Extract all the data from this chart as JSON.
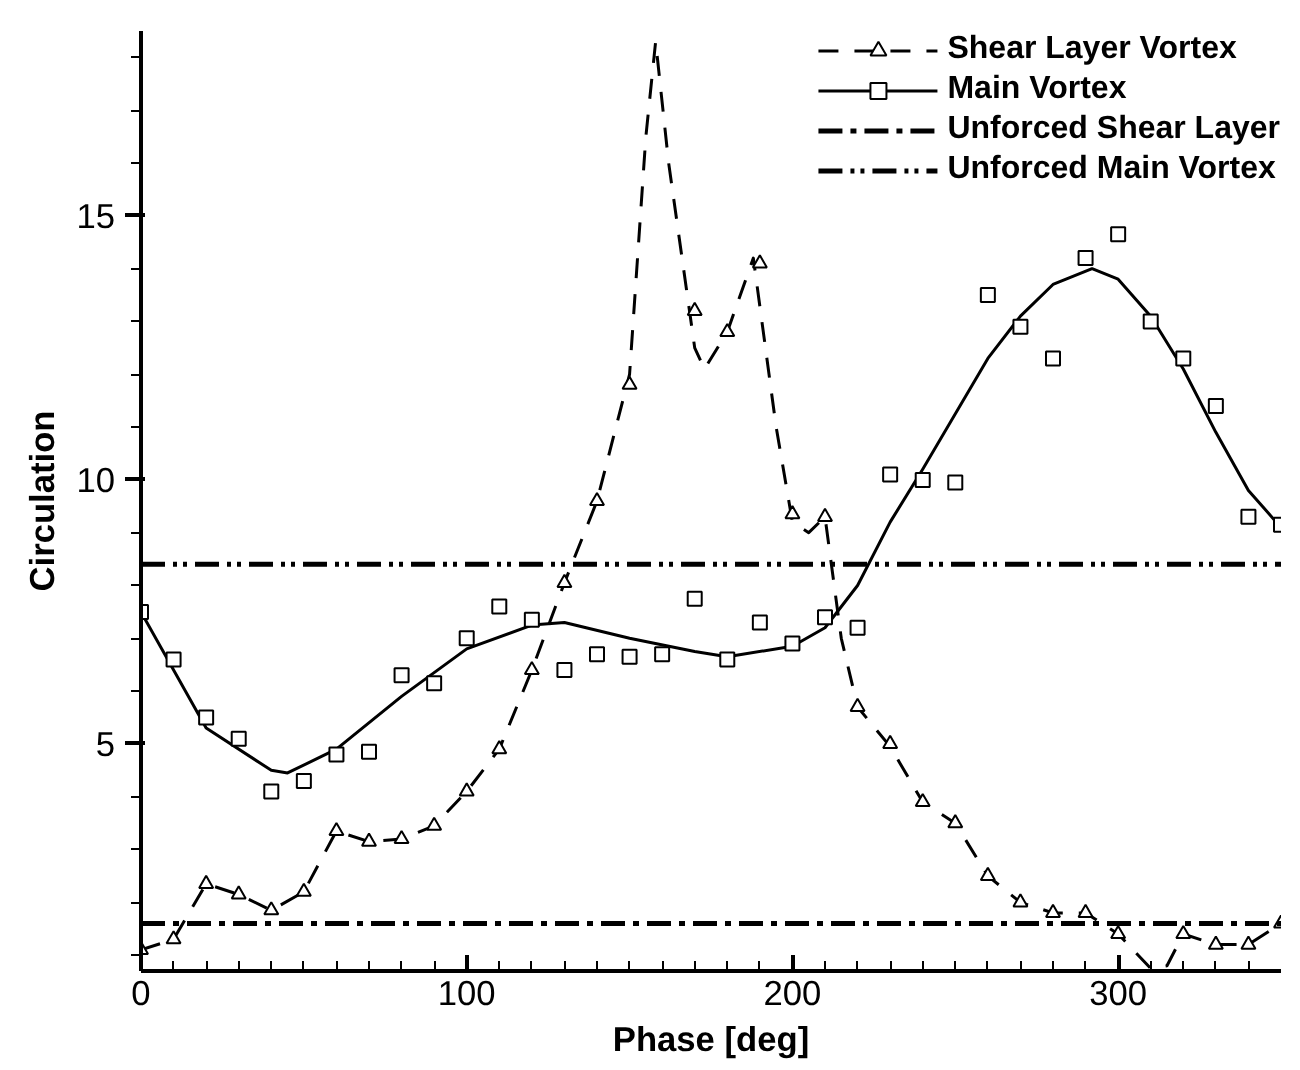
{
  "chart_data": {
    "type": "line",
    "xlabel": "Phase [deg]",
    "ylabel": "Circulation",
    "xlim": [
      0,
      350
    ],
    "ylim": [
      0.7,
      18.5
    ],
    "xticks": [
      0,
      {
        "value": 10,
        "label": null
      },
      {
        "value": 20,
        "label": null
      },
      {
        "value": 30,
        "label": null
      },
      {
        "value": 40,
        "label": null
      },
      {
        "value": 50,
        "label": null
      },
      {
        "value": 60,
        "label": null
      },
      {
        "value": 70,
        "label": null
      },
      {
        "value": 80,
        "label": null
      },
      {
        "value": 90,
        "label": null
      },
      100,
      {
        "value": 110,
        "label": null
      },
      {
        "value": 120,
        "label": null
      },
      {
        "value": 130,
        "label": null
      },
      {
        "value": 140,
        "label": null
      },
      {
        "value": 150,
        "label": null
      },
      {
        "value": 160,
        "label": null
      },
      {
        "value": 170,
        "label": null
      },
      {
        "value": 180,
        "label": null
      },
      {
        "value": 190,
        "label": null
      },
      200,
      {
        "value": 210,
        "label": null
      },
      {
        "value": 220,
        "label": null
      },
      {
        "value": 230,
        "label": null
      },
      {
        "value": 240,
        "label": null
      },
      {
        "value": 250,
        "label": null
      },
      {
        "value": 260,
        "label": null
      },
      {
        "value": 270,
        "label": null
      },
      {
        "value": 280,
        "label": null
      },
      {
        "value": 290,
        "label": null
      },
      300,
      {
        "value": 310,
        "label": null
      },
      {
        "value": 320,
        "label": null
      },
      {
        "value": 330,
        "label": null
      },
      {
        "value": 340,
        "label": null
      }
    ],
    "yticks": [
      {
        "value": 1,
        "label": null
      },
      {
        "value": 2,
        "label": null
      },
      {
        "value": 3,
        "label": null
      },
      {
        "value": 4,
        "label": null
      },
      5,
      {
        "value": 6,
        "label": null
      },
      {
        "value": 7,
        "label": null
      },
      {
        "value": 8,
        "label": null
      },
      {
        "value": 9,
        "label": null
      },
      10,
      {
        "value": 11,
        "label": null
      },
      {
        "value": 12,
        "label": null
      },
      {
        "value": 13,
        "label": null
      },
      {
        "value": 14,
        "label": null
      },
      15,
      {
        "value": 16,
        "label": null
      },
      {
        "value": 17,
        "label": null
      },
      {
        "value": 18,
        "label": null
      }
    ],
    "grid": false,
    "legend": "top right",
    "series": [
      {
        "name": "Shear Layer Vortex",
        "color": "#000000",
        "line_style": "dashed",
        "marker": "none",
        "x": [
          0,
          10,
          20,
          30,
          40,
          50,
          60,
          70,
          80,
          90,
          100,
          110,
          120,
          130,
          140,
          150,
          155,
          158,
          162,
          170,
          173,
          180,
          188,
          195,
          200,
          205,
          210,
          215,
          220,
          230,
          240,
          250,
          260,
          270,
          280,
          290,
          300,
          310,
          315,
          320,
          330,
          340,
          350
        ],
        "values": [
          1.1,
          1.3,
          2.35,
          2.15,
          1.85,
          2.2,
          3.35,
          3.15,
          3.2,
          3.45,
          4.1,
          4.9,
          6.4,
          8.05,
          9.6,
          12.0,
          16.5,
          18.3,
          16.0,
          12.5,
          12.1,
          12.8,
          14.2,
          11.0,
          9.2,
          9.0,
          9.3,
          7.0,
          5.7,
          4.95,
          3.9,
          3.5,
          2.5,
          2.0,
          1.8,
          1.8,
          1.4,
          0.75,
          0.8,
          1.4,
          1.2,
          1.2,
          1.6
        ]
      },
      {
        "type": "scatter",
        "color": "#000000",
        "marker": "triangle",
        "x": [
          0,
          10,
          20,
          30,
          40,
          50,
          60,
          70,
          80,
          90,
          100,
          110,
          120,
          130,
          140,
          150,
          170,
          180,
          190,
          200,
          210,
          220,
          230,
          240,
          250,
          260,
          270,
          280,
          290,
          300,
          320,
          330,
          340,
          350
        ],
        "values": [
          1.1,
          1.3,
          2.35,
          2.15,
          1.85,
          2.2,
          3.35,
          3.15,
          3.2,
          3.45,
          4.1,
          4.9,
          6.4,
          8.05,
          9.6,
          11.8,
          13.2,
          12.8,
          14.1,
          9.35,
          9.3,
          5.7,
          5.0,
          3.9,
          3.5,
          2.5,
          2.0,
          1.8,
          1.8,
          1.4,
          1.4,
          1.2,
          1.2,
          1.6
        ]
      },
      {
        "name": "Main Vortex",
        "color": "#000000",
        "line_style": "solid",
        "marker": "none",
        "x": [
          0,
          20,
          40,
          45,
          60,
          80,
          100,
          120,
          130,
          150,
          170,
          180,
          200,
          210,
          220,
          230,
          240,
          260,
          270,
          280,
          292,
          300,
          310,
          320,
          330,
          340,
          350
        ],
        "values": [
          7.5,
          5.3,
          4.5,
          4.45,
          4.9,
          5.9,
          6.8,
          7.25,
          7.3,
          7.0,
          6.75,
          6.65,
          6.85,
          7.2,
          8.0,
          9.2,
          10.2,
          12.3,
          13.1,
          13.7,
          14.0,
          13.8,
          13.1,
          12.1,
          10.9,
          9.8,
          9.1
        ]
      },
      {
        "type": "scatter",
        "color": "#000000",
        "marker": "square",
        "x": [
          0,
          10,
          20,
          30,
          40,
          50,
          60,
          70,
          80,
          90,
          100,
          110,
          120,
          130,
          140,
          150,
          160,
          170,
          180,
          190,
          200,
          210,
          220,
          230,
          240,
          250,
          260,
          270,
          280,
          290,
          300,
          310,
          320,
          330,
          340,
          350
        ],
        "values": [
          7.5,
          6.6,
          5.5,
          5.1,
          4.1,
          4.3,
          4.8,
          4.85,
          6.3,
          6.15,
          7.0,
          7.6,
          7.35,
          6.4,
          6.7,
          6.65,
          6.7,
          7.75,
          6.6,
          7.3,
          6.9,
          7.4,
          7.2,
          10.1,
          10.0,
          9.95,
          13.5,
          12.9,
          12.3,
          14.2,
          14.65,
          13.0,
          12.3,
          11.4,
          9.3,
          9.15
        ]
      },
      {
        "name": "Unforced Shear Layer",
        "color": "#000000",
        "line_style": "dashdot",
        "marker": "none",
        "x": [
          0,
          350
        ],
        "values": [
          1.6,
          1.6
        ]
      },
      {
        "name": "Unforced Main Vortex",
        "color": "#000000",
        "line_style": "dashdotdot",
        "marker": "none",
        "x": [
          0,
          350
        ],
        "values": [
          8.4,
          8.4
        ]
      }
    ]
  }
}
